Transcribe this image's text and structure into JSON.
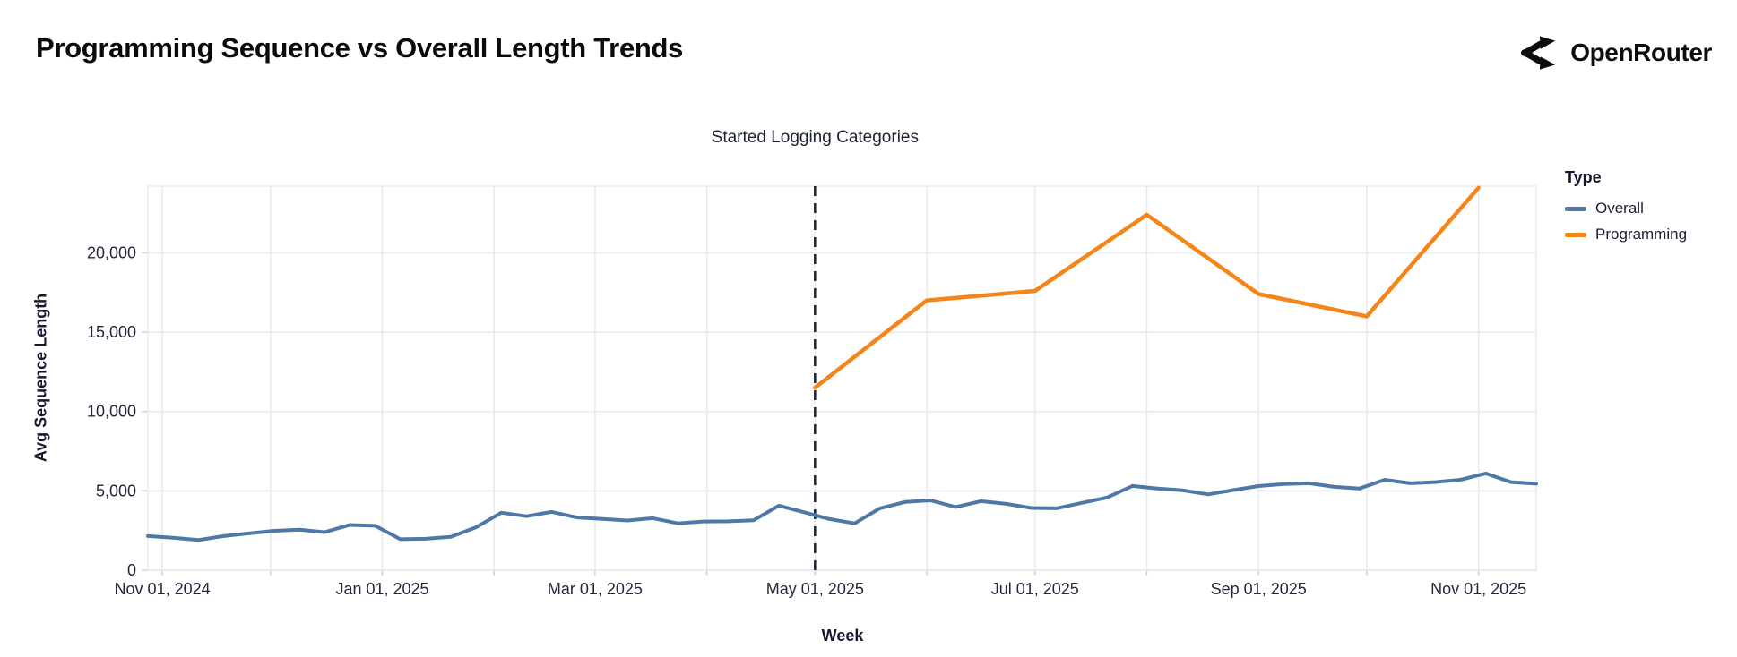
{
  "header": {
    "title": "Programming Sequence vs Overall Length Trends",
    "brand": "OpenRouter"
  },
  "chart": {
    "annotation": "Started Logging Categories",
    "x_axis": {
      "label": "Week"
    },
    "y_axis": {
      "label": "Avg Sequence Length"
    },
    "legend": {
      "title": "Type"
    }
  },
  "chart_data": {
    "type": "line",
    "title": "Programming Sequence vs Overall Length Trends",
    "xlabel": "Week",
    "ylabel": "Avg Sequence Length",
    "grid": true,
    "legend_position": "right",
    "x_domain": [
      "2024-10-28",
      "2025-11-17"
    ],
    "ylim": [
      0,
      24200
    ],
    "y_ticks": [
      {
        "value": 0,
        "label": "0"
      },
      {
        "value": 5000,
        "label": "5,000"
      },
      {
        "value": 10000,
        "label": "10,000"
      },
      {
        "value": 15000,
        "label": "15,000"
      },
      {
        "value": 20000,
        "label": "20,000"
      }
    ],
    "x_month_gridlines": [
      "2024-11-01",
      "2024-12-01",
      "2025-01-01",
      "2025-02-01",
      "2025-03-01",
      "2025-04-01",
      "2025-05-01",
      "2025-06-01",
      "2025-07-01",
      "2025-08-01",
      "2025-09-01",
      "2025-10-01",
      "2025-11-01"
    ],
    "x_ticks": [
      {
        "date": "2024-11-01",
        "label": "Nov 01, 2024"
      },
      {
        "date": "2025-01-01",
        "label": "Jan 01, 2025"
      },
      {
        "date": "2025-03-01",
        "label": "Mar 01, 2025"
      },
      {
        "date": "2025-05-01",
        "label": "May 01, 2025"
      },
      {
        "date": "2025-07-01",
        "label": "Jul 01, 2025"
      },
      {
        "date": "2025-09-01",
        "label": "Sep 01, 2025"
      },
      {
        "date": "2025-11-01",
        "label": "Nov 01, 2025"
      }
    ],
    "annotation": {
      "label": "Started Logging Categories",
      "x": "2025-05-01"
    },
    "series": [
      {
        "name": "Overall",
        "color": "#4e79a7",
        "x": [
          "2024-10-28",
          "2024-11-04",
          "2024-11-11",
          "2024-11-18",
          "2024-11-25",
          "2024-12-02",
          "2024-12-09",
          "2024-12-16",
          "2024-12-23",
          "2024-12-30",
          "2025-01-06",
          "2025-01-13",
          "2025-01-20",
          "2025-01-27",
          "2025-02-03",
          "2025-02-10",
          "2025-02-17",
          "2025-02-24",
          "2025-03-03",
          "2025-03-10",
          "2025-03-17",
          "2025-03-24",
          "2025-03-31",
          "2025-04-07",
          "2025-04-14",
          "2025-04-21",
          "2025-04-28",
          "2025-05-05",
          "2025-05-12",
          "2025-05-19",
          "2025-05-26",
          "2025-06-02",
          "2025-06-09",
          "2025-06-16",
          "2025-06-23",
          "2025-06-30",
          "2025-07-07",
          "2025-07-14",
          "2025-07-21",
          "2025-07-28",
          "2025-08-04",
          "2025-08-11",
          "2025-08-18",
          "2025-08-25",
          "2025-09-01",
          "2025-09-08",
          "2025-09-15",
          "2025-09-22",
          "2025-09-29",
          "2025-10-06",
          "2025-10-13",
          "2025-10-20",
          "2025-10-27",
          "2025-11-03",
          "2025-11-10",
          "2025-11-17"
        ],
        "values": [
          2150,
          2050,
          1900,
          2150,
          2320,
          2480,
          2550,
          2400,
          2850,
          2800,
          1950,
          1980,
          2100,
          2700,
          3620,
          3400,
          3670,
          3320,
          3230,
          3130,
          3280,
          2950,
          3070,
          3080,
          3150,
          4070,
          3650,
          3220,
          2950,
          3900,
          4300,
          4400,
          3980,
          4350,
          4180,
          3920,
          3900,
          4240,
          4580,
          5310,
          5150,
          5030,
          4780,
          5050,
          5300,
          5430,
          5480,
          5250,
          5150,
          5700,
          5480,
          5550,
          5700,
          6100,
          5550,
          5450
        ]
      },
      {
        "name": "Programming",
        "color": "#f58518",
        "x": [
          "2025-05-01",
          "2025-06-01",
          "2025-07-01",
          "2025-08-01",
          "2025-09-01",
          "2025-10-01",
          "2025-11-01"
        ],
        "values": [
          11500,
          17000,
          17600,
          22400,
          17400,
          16000,
          24100
        ]
      }
    ]
  }
}
